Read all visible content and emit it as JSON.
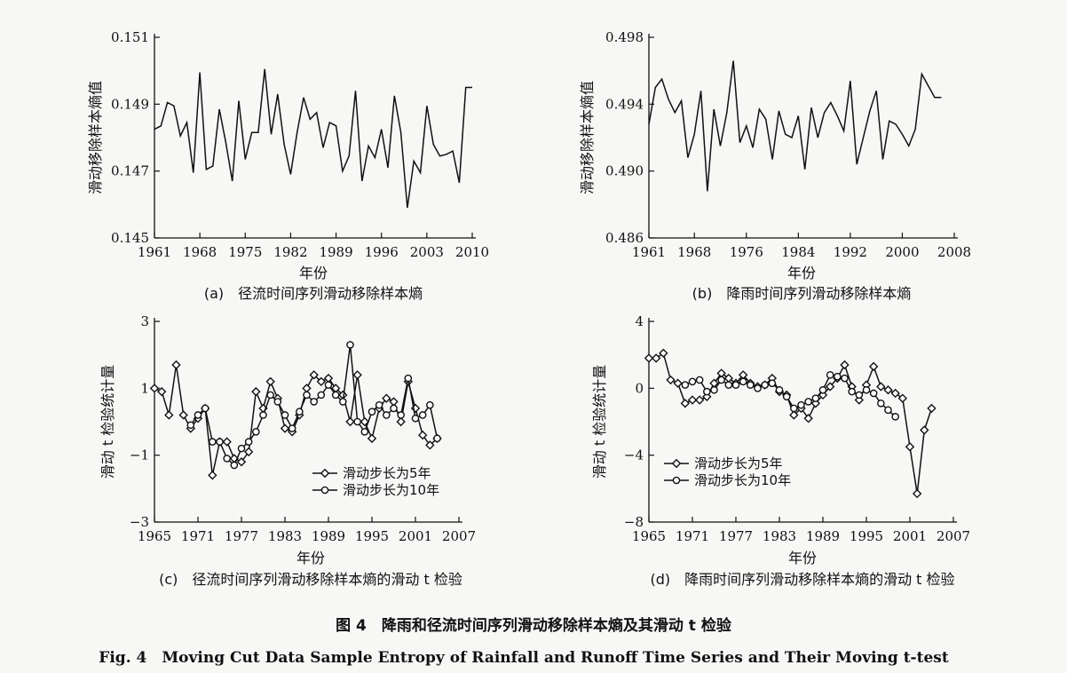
{
  "figure": {
    "title_cn": "图 4　降雨和径流时间序列滑动移除样本熵及其滑动 t 检验",
    "title_en": "Fig. 4　Moving Cut Data Sample Entropy of Rainfall and Runoff Time Series and Their Moving t-test"
  },
  "chart_data": [
    {
      "id": "a",
      "type": "line",
      "caption": "(a)　径流时间序列滑动移除样本熵",
      "xlabel": "年份",
      "ylabel": "滑动移除样本熵值",
      "xlim": [
        1961,
        2010
      ],
      "ylim": [
        0.145,
        0.151
      ],
      "xticks": [
        1961,
        1968,
        1975,
        1982,
        1989,
        1996,
        2003,
        2010
      ],
      "xtick_labels": [
        "1961",
        "1968",
        "1975",
        "1982",
        "1989",
        "1996",
        "2003",
        "2010"
      ],
      "yticks": [
        0.145,
        0.147,
        0.149,
        0.151
      ],
      "ytick_labels": [
        "0.145",
        "0.147",
        "0.149",
        "0.151"
      ],
      "series": [
        {
          "marker": "none",
          "x": [
            1961,
            1962,
            1963,
            1964,
            1965,
            1966,
            1967,
            1968,
            1969,
            1970,
            1971,
            1972,
            1973,
            1974,
            1975,
            1976,
            1977,
            1978,
            1979,
            1980,
            1981,
            1982,
            1983,
            1984,
            1985,
            1986,
            1987,
            1988,
            1989,
            1990,
            1991,
            1992,
            1993,
            1994,
            1995,
            1996,
            1997,
            1998,
            1999,
            2000,
            2001,
            2002,
            2003,
            2004,
            2005,
            2006,
            2007,
            2008,
            2009,
            2010
          ],
          "y": [
            0.14825,
            0.14835,
            0.14905,
            0.14895,
            0.14805,
            0.14845,
            0.14695,
            0.14995,
            0.14705,
            0.14715,
            0.14885,
            0.14785,
            0.1467,
            0.1491,
            0.14735,
            0.14815,
            0.14815,
            0.15005,
            0.1481,
            0.1493,
            0.1478,
            0.1469,
            0.14815,
            0.1492,
            0.14855,
            0.14875,
            0.1477,
            0.14845,
            0.14835,
            0.147,
            0.14745,
            0.1494,
            0.1467,
            0.14775,
            0.1474,
            0.14825,
            0.1471,
            0.14925,
            0.14815,
            0.1459,
            0.1473,
            0.14695,
            0.14895,
            0.1478,
            0.14745,
            0.1475,
            0.1476,
            0.14665,
            0.1495,
            0.1495
          ]
        }
      ]
    },
    {
      "id": "b",
      "type": "line",
      "caption": "(b)　降雨时间序列滑动移除样本熵",
      "xlabel": "年份",
      "ylabel": "滑动移除样本熵值",
      "xlim": [
        1961,
        2008
      ],
      "ylim": [
        0.486,
        0.498
      ],
      "xticks": [
        1961,
        1968,
        1976,
        1984,
        1992,
        2000,
        2008
      ],
      "xtick_labels": [
        "1961",
        "1968",
        "1976",
        "1984",
        "1992",
        "2000",
        "2008"
      ],
      "yticks": [
        0.486,
        0.49,
        0.494,
        0.498
      ],
      "ytick_labels": [
        "0.486",
        "0.490",
        "0.494",
        "0.498"
      ],
      "series": [
        {
          "marker": "none",
          "x": [
            1961,
            1962,
            1963,
            1964,
            1965,
            1966,
            1967,
            1968,
            1969,
            1970,
            1971,
            1972,
            1973,
            1974,
            1975,
            1976,
            1977,
            1978,
            1979,
            1980,
            1981,
            1982,
            1983,
            1984,
            1985,
            1986,
            1987,
            1988,
            1989,
            1990,
            1991,
            1992,
            1993,
            1994,
            1995,
            1996,
            1997,
            1998,
            1999,
            2000,
            2001,
            2002,
            2003,
            2004,
            2005,
            2006
          ],
          "y": [
            0.4928,
            0.495,
            0.4955,
            0.4943,
            0.4935,
            0.4942,
            0.4908,
            0.4922,
            0.4948,
            0.4888,
            0.4937,
            0.4915,
            0.4935,
            0.4966,
            0.4917,
            0.4927,
            0.4914,
            0.4937,
            0.4931,
            0.4907,
            0.4936,
            0.4922,
            0.492,
            0.4933,
            0.4901,
            0.4938,
            0.492,
            0.4935,
            0.4941,
            0.4933,
            0.4924,
            0.4954,
            0.4904,
            0.492,
            0.4936,
            0.4948,
            0.4907,
            0.493,
            0.4928,
            0.4922,
            0.4915,
            0.4925,
            0.4958,
            0.4951,
            0.4944,
            0.4944
          ]
        }
      ]
    },
    {
      "id": "c",
      "type": "line",
      "caption": "(c)　径流时间序列滑动移除样本熵的滑动 t 检验",
      "xlabel": "年份",
      "ylabel": "滑动 t 检验统计量",
      "xlim": [
        1965,
        2007
      ],
      "ylim": [
        -3,
        3
      ],
      "xticks": [
        1965,
        1971,
        1977,
        1983,
        1989,
        1995,
        2001,
        2007
      ],
      "xtick_labels": [
        "1965",
        "1971",
        "1977",
        "1983",
        "1989",
        "1995",
        "2001",
        "2007"
      ],
      "yticks": [
        -3,
        -1,
        1,
        3
      ],
      "ytick_labels": [
        "−3",
        "−1",
        "1",
        "3"
      ],
      "legend": {
        "position": "lower-center",
        "labels": [
          "滑动步长为5年",
          "滑动步长为10年"
        ]
      },
      "series": [
        {
          "name": "滑动步长为5年",
          "marker": "diamond",
          "x": [
            1965,
            1966,
            1967,
            1968,
            1969,
            1970,
            1971,
            1972,
            1973,
            1974,
            1975,
            1976,
            1977,
            1978,
            1979,
            1980,
            1981,
            1982,
            1983,
            1984,
            1985,
            1986,
            1987,
            1988,
            1989,
            1990,
            1991,
            1992,
            1993,
            1994,
            1995,
            1996,
            1997,
            1998,
            1999,
            2000,
            2001,
            2002,
            2003,
            2004
          ],
          "y": [
            1.0,
            0.9,
            0.2,
            1.7,
            0.2,
            -0.2,
            0.1,
            0.4,
            -1.6,
            -0.6,
            -0.6,
            -1.1,
            -1.2,
            -0.9,
            0.9,
            0.4,
            1.2,
            0.7,
            -0.2,
            -0.3,
            0.2,
            1.0,
            1.4,
            1.2,
            1.3,
            1.0,
            0.8,
            0.0,
            1.4,
            0.0,
            -0.5,
            0.4,
            0.7,
            0.6,
            0.0,
            1.2,
            0.4,
            -0.4,
            -0.7,
            -0.5
          ]
        },
        {
          "name": "滑动步长为10年",
          "marker": "circle",
          "x": [
            1970,
            1971,
            1972,
            1973,
            1974,
            1975,
            1976,
            1977,
            1978,
            1979,
            1980,
            1981,
            1982,
            1983,
            1984,
            1985,
            1986,
            1987,
            1988,
            1989,
            1990,
            1991,
            1992,
            1993,
            1994,
            1995,
            1996,
            1997,
            1998,
            1999,
            2000,
            2001,
            2002,
            2003,
            2004
          ],
          "y": [
            -0.1,
            0.2,
            0.4,
            -0.6,
            -0.6,
            -1.1,
            -1.3,
            -0.8,
            -0.6,
            -0.3,
            0.2,
            0.8,
            0.6,
            0.2,
            -0.2,
            0.3,
            0.8,
            0.6,
            0.8,
            1.1,
            0.8,
            0.6,
            2.3,
            0.0,
            -0.3,
            0.3,
            0.5,
            0.2,
            0.4,
            0.2,
            1.3,
            0.1,
            0.2,
            0.5,
            -0.5
          ]
        }
      ]
    },
    {
      "id": "d",
      "type": "line",
      "caption": "(d)　降雨时间序列滑动移除样本熵的滑动 t 检验",
      "xlabel": "年份",
      "ylabel": "滑动 t 检验统计量",
      "xlim": [
        1965,
        2007
      ],
      "ylim": [
        -8,
        4
      ],
      "xticks": [
        1965,
        1971,
        1977,
        1983,
        1989,
        1995,
        2001,
        2007
      ],
      "xtick_labels": [
        "1965",
        "1971",
        "1977",
        "1983",
        "1989",
        "1995",
        "2001",
        "2007"
      ],
      "yticks": [
        -8,
        -4,
        0,
        4
      ],
      "ytick_labels": [
        "−8",
        "−4",
        "0",
        "4"
      ],
      "legend": {
        "position": "lower-left",
        "labels": [
          "滑动步长为5年",
          "滑动步长为10年"
        ]
      },
      "series": [
        {
          "name": "滑动步长为5年",
          "marker": "diamond",
          "x": [
            1965,
            1966,
            1967,
            1968,
            1969,
            1970,
            1971,
            1972,
            1973,
            1974,
            1975,
            1976,
            1977,
            1978,
            1979,
            1980,
            1981,
            1982,
            1983,
            1984,
            1985,
            1986,
            1987,
            1988,
            1989,
            1990,
            1991,
            1992,
            1993,
            1994,
            1995,
            1996,
            1997,
            1998,
            1999,
            2000,
            2001,
            2002,
            2003,
            2004
          ],
          "y": [
            1.8,
            1.8,
            2.1,
            0.5,
            0.3,
            -0.9,
            -0.7,
            -0.7,
            -0.5,
            0.3,
            0.9,
            0.6,
            0.3,
            0.8,
            0.3,
            0.1,
            0.2,
            0.6,
            -0.2,
            -0.4,
            -1.6,
            -1.2,
            -1.8,
            -0.9,
            -0.4,
            0.1,
            0.6,
            1.4,
            0.1,
            -0.7,
            0.2,
            1.3,
            0.1,
            -0.1,
            -0.3,
            -0.6,
            -3.5,
            -6.3,
            -2.5,
            -1.2
          ]
        },
        {
          "name": "滑动步长为10年",
          "marker": "circle",
          "x": [
            1970,
            1971,
            1972,
            1973,
            1974,
            1975,
            1976,
            1977,
            1978,
            1979,
            1980,
            1981,
            1982,
            1983,
            1984,
            1985,
            1986,
            1987,
            1988,
            1989,
            1990,
            1991,
            1992,
            1993,
            1994,
            1995,
            1996,
            1997,
            1998,
            1999
          ],
          "y": [
            0.2,
            0.4,
            0.5,
            -0.2,
            -0.1,
            0.5,
            0.2,
            0.2,
            0.4,
            0.2,
            0.0,
            0.2,
            0.3,
            -0.1,
            -0.5,
            -1.2,
            -1.0,
            -0.8,
            -0.6,
            -0.1,
            0.8,
            0.7,
            0.6,
            -0.2,
            -0.4,
            -0.1,
            -0.3,
            -0.9,
            -1.3,
            -1.7
          ]
        }
      ]
    }
  ]
}
